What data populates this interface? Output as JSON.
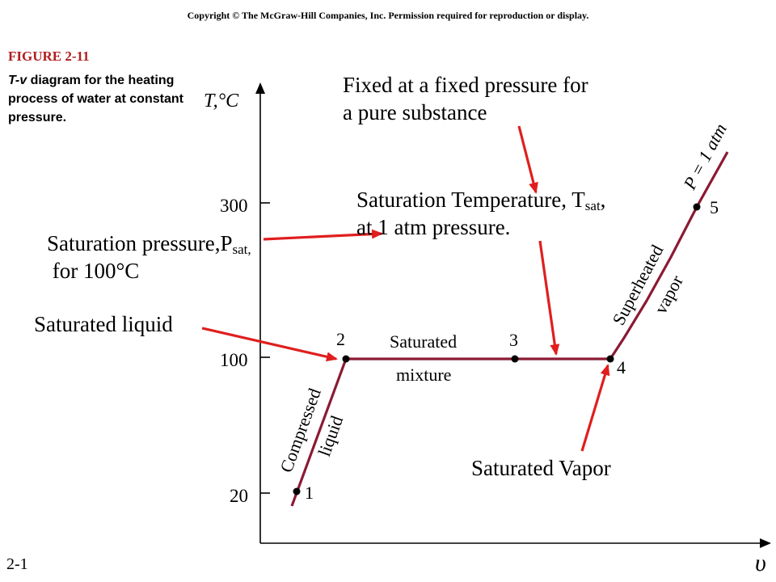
{
  "header": {
    "copyright": "Copyright © The McGraw-Hill Companies, Inc. Permission required for reproduction or display."
  },
  "figure": {
    "number": "FIGURE 2-11",
    "caption_italic": "T-v",
    "caption_rest": " diagram for the heating process of water at constant pressure."
  },
  "slide_number": "2-1",
  "diagram": {
    "y_axis_label": "T,°C",
    "x_axis_label": "υ",
    "y_ticks": [
      "300",
      "100",
      "20"
    ],
    "pressure_label": "P = 1 atm",
    "points": [
      "1",
      "2",
      "3",
      "4",
      "5"
    ],
    "regions": {
      "compressed_1": "Compressed",
      "compressed_2": "liquid",
      "saturated_1": "Saturated",
      "saturated_2": "mixture",
      "superheated_1": "Superheated",
      "superheated_2": "vapor"
    },
    "line_color": "#8b1a33",
    "arrow_color": "#e01e1e"
  },
  "annotations": {
    "fixed_line1": "Fixed at a fixed pressure for",
    "fixed_line2": "a pure substance",
    "sat_temp_line1": "Saturation Temperature, T",
    "sat_temp_sub": "sat",
    "sat_temp_comma": ",",
    "sat_temp_line2": "at 1 atm pressure.",
    "sat_pres_line1": "Saturation pressure,P",
    "sat_pres_sub": "sat,",
    "sat_pres_line2": " for 100°C",
    "sat_liquid": "Saturated liquid",
    "sat_vapor": "Saturated Vapor"
  }
}
